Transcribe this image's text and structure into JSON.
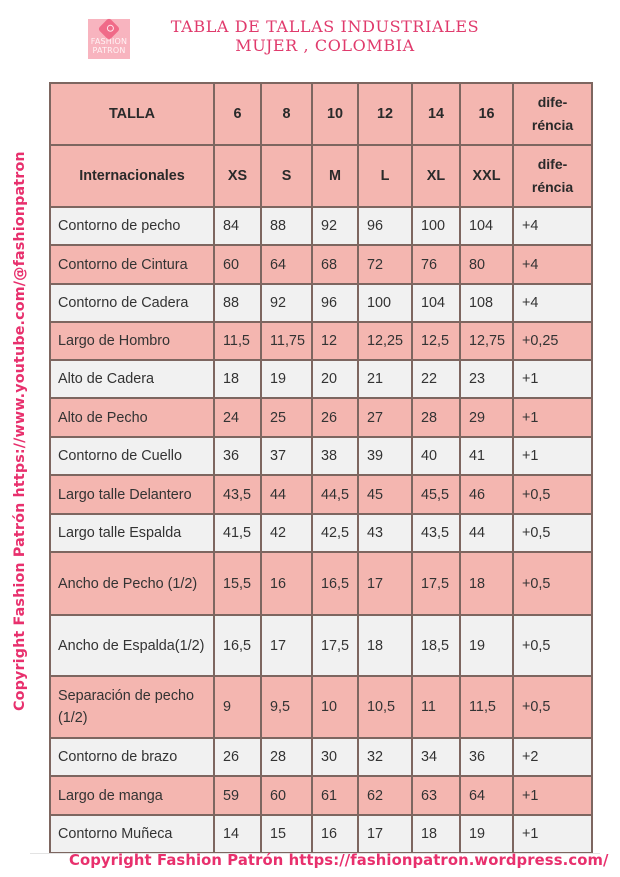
{
  "logo": {
    "line1": "FASHION",
    "line2": "PATRON"
  },
  "title": {
    "line1": "TABLA DE TALLAS INDUSTRIALES",
    "line2": "MUJER , COLOMBIA"
  },
  "side_text": "Copyright Fashion Patrón https://www.youtube.com/@fashionpatron",
  "footer": "Copyright Fashion Patrón https://fashionpatron.wordpress.com/",
  "colors": {
    "accent_pink": "#e8306d",
    "title_pink": "#e03a6c",
    "row_pink": "#f4b6b0",
    "row_grey": "#f1f1f1",
    "border": "#7d6660"
  },
  "table": {
    "header": {
      "label": "TALLA",
      "sizes": [
        "6",
        "8",
        "10",
        "12",
        "14",
        "16"
      ],
      "diff_line1": "dife-",
      "diff_line2": "réncia"
    },
    "international": {
      "label": "Internacionales",
      "sizes": [
        "XS",
        "S",
        "M",
        "L",
        "XL",
        "XXL"
      ],
      "diff_line1": "dife-",
      "diff_line2": "réncia"
    },
    "rows": [
      {
        "label": "Contorno de pecho",
        "values": [
          "84",
          "88",
          "92",
          "96",
          "100",
          "104"
        ],
        "diff": "+4"
      },
      {
        "label": "Contorno de Cintura",
        "values": [
          "60",
          "64",
          "68",
          "72",
          "76",
          "80"
        ],
        "diff": "+4"
      },
      {
        "label": "Contorno de Cadera",
        "values": [
          "88",
          "92",
          "96",
          "100",
          "104",
          "108"
        ],
        "diff": "+4"
      },
      {
        "label": "Largo de Hombro",
        "values": [
          "11,5",
          "11,75",
          "12",
          "12,25",
          "12,5",
          "12,75"
        ],
        "diff": "+0,25"
      },
      {
        "label": "Alto de Cadera",
        "values": [
          "18",
          "19",
          "20",
          "21",
          "22",
          "23"
        ],
        "diff": "+1"
      },
      {
        "label": "Alto de Pecho",
        "values": [
          "24",
          "25",
          "26",
          "27",
          "28",
          "29"
        ],
        "diff": "+1"
      },
      {
        "label": "Contorno de Cuello",
        "values": [
          "36",
          "37",
          "38",
          "39",
          "40",
          "41"
        ],
        "diff": "+1"
      },
      {
        "label": "Largo talle Delantero",
        "values": [
          "43,5",
          "44",
          "44,5",
          "45",
          "45,5",
          "46"
        ],
        "diff": "+0,5"
      },
      {
        "label": "Largo talle Espalda",
        "values": [
          "41,5",
          "42",
          "42,5",
          "43",
          "43,5",
          "44"
        ],
        "diff": "+0,5"
      },
      {
        "label": "Ancho de Pecho (1/2)",
        "values": [
          "15,5",
          "16",
          "16,5",
          "17",
          "17,5",
          "18"
        ],
        "diff": "+0,5"
      },
      {
        "label": "Ancho de Espalda(1/2)",
        "values": [
          "16,5",
          "17",
          "17,5",
          "18",
          "18,5",
          "19"
        ],
        "diff": "+0,5"
      },
      {
        "label": "Separación de pecho (1/2)",
        "values": [
          "9",
          "9,5",
          "10",
          "10,5",
          "11",
          "11,5"
        ],
        "diff": "+0,5"
      },
      {
        "label": "Contorno de brazo",
        "values": [
          "26",
          "28",
          "30",
          "32",
          "34",
          "36"
        ],
        "diff": "+2"
      },
      {
        "label": "Largo de manga",
        "values": [
          "59",
          "60",
          "61",
          "62",
          "63",
          "64"
        ],
        "diff": "+1"
      },
      {
        "label": "Contorno Muñeca",
        "values": [
          "14",
          "15",
          "16",
          "17",
          "18",
          "19"
        ],
        "diff": "+1"
      }
    ]
  }
}
